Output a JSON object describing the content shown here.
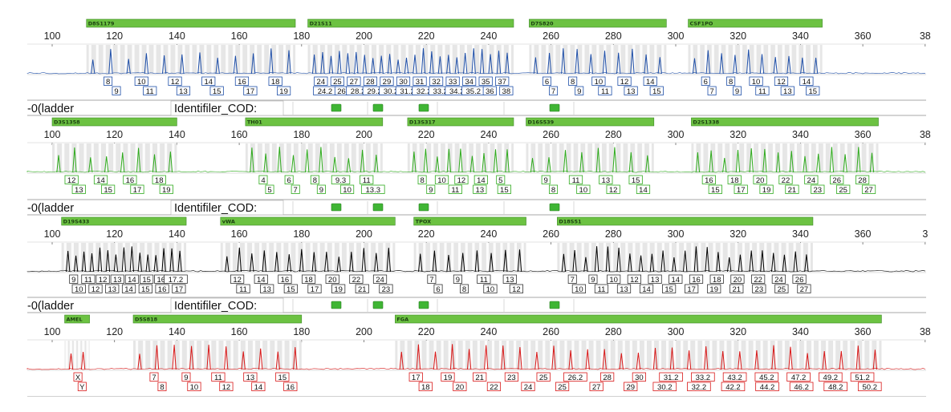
{
  "scale_labels": [
    "100",
    "120",
    "140",
    "160",
    "180",
    "200",
    "220",
    "240",
    "260",
    "280",
    "300",
    "320",
    "340",
    "360",
    "38"
  ],
  "panel_scale_labels": [
    [
      "100",
      "120",
      "140",
      "160",
      "180",
      "200",
      "220",
      "240",
      "260",
      "280",
      "300",
      "320",
      "340",
      "360",
      "38"
    ],
    [
      "100",
      "120",
      "140",
      "160",
      "180",
      "200",
      "220",
      "240",
      "260",
      "280",
      "300",
      "320",
      "340",
      "360",
      "38"
    ],
    [
      "100",
      "120",
      "140",
      "160",
      "180",
      "200",
      "220",
      "240",
      "260",
      "280",
      "300",
      "320",
      "340",
      "360",
      "3"
    ],
    [
      "100",
      "120",
      "140",
      "160",
      "180",
      "200",
      "220",
      "240",
      "260",
      "280",
      "300",
      "320",
      "340",
      "360",
      "38"
    ]
  ],
  "info_rows": [
    {
      "sample": "-0(ladder",
      "panel": "Identifiler_COD:"
    },
    {
      "sample": "-0(ladder",
      "panel": "Identifiler_COD:"
    },
    {
      "sample": "-0(ladder",
      "panel": "Identifiler_COD:"
    }
  ],
  "colors": {
    "blue": "#1f4fa8",
    "green": "#2eaa1c",
    "black": "#000000",
    "red": "#d81818",
    "marker": "#6cc242",
    "bin": "#e6e6e6"
  },
  "panels": [
    {
      "dye": "blue",
      "loci": [
        {
          "name": "D8S1179",
          "start": 111,
          "end": 178,
          "labels_top": [
            "8",
            "10",
            "12",
            "14",
            "16",
            "18"
          ],
          "labels_bottom": [
            "9",
            "11",
            "13",
            "15",
            "17",
            "19"
          ]
        },
        {
          "name": "D21S11",
          "start": 182,
          "end": 248,
          "labels_top": [
            "24",
            "25",
            "27",
            "28",
            "29",
            "30",
            "31",
            "32",
            "33",
            "34",
            "35",
            "37"
          ],
          "labels_bottom": [
            "24.2",
            "26",
            "28.2",
            "29.2",
            "30.2",
            "31.2",
            "32.2",
            "33.2",
            "34.2",
            "35.2",
            "36",
            "38"
          ]
        },
        {
          "name": "D7S820",
          "start": 253,
          "end": 297,
          "labels_top": [
            "6",
            "8",
            "10",
            "12",
            "14"
          ],
          "labels_bottom": [
            "7",
            "9",
            "11",
            "13",
            "15"
          ]
        },
        {
          "name": "CSF1PO",
          "start": 304,
          "end": 347,
          "labels_top": [
            "6",
            "8",
            "10",
            "12",
            "14"
          ],
          "labels_bottom": [
            "7",
            "9",
            "11",
            "13",
            "15"
          ]
        }
      ]
    },
    {
      "dye": "green",
      "loci": [
        {
          "name": "D3S1358",
          "start": 100,
          "end": 140,
          "labels_top": [
            "12",
            "14",
            "16",
            "18"
          ],
          "labels_bottom": [
            "13",
            "15",
            "17",
            "19"
          ]
        },
        {
          "name": "TH01",
          "start": 162,
          "end": 206,
          "labels_top": [
            "4",
            "6",
            "8",
            "9.3",
            "11"
          ],
          "labels_bottom": [
            "5",
            "7",
            "9",
            "10",
            "13.3"
          ]
        },
        {
          "name": "D13S317",
          "start": 214,
          "end": 248,
          "labels_top": [
            "8",
            "10",
            "12",
            "14",
            "5"
          ],
          "labels_bottom": [
            "9",
            "11",
            "13",
            "15"
          ]
        },
        {
          "name": "D16S539",
          "start": 252,
          "end": 293,
          "labels_top": [
            "9",
            "11",
            "13",
            "15"
          ],
          "labels_bottom": [
            "8",
            "10",
            "12",
            "14"
          ]
        },
        {
          "name": "D2S1338",
          "start": 305,
          "end": 365,
          "labels_top": [
            "16",
            "18",
            "20",
            "22",
            "24",
            "26",
            "28"
          ],
          "labels_bottom": [
            "15",
            "17",
            "19",
            "21",
            "23",
            "25",
            "27"
          ]
        }
      ]
    },
    {
      "dye": "black",
      "loci": [
        {
          "name": "D19S433",
          "start": 103,
          "end": 143,
          "labels_top": [
            "9",
            "11",
            "12",
            "13",
            "14",
            "15",
            "16",
            "17.2"
          ],
          "labels_bottom": [
            "10",
            "12",
            "13",
            "14",
            "15",
            "16",
            "17"
          ]
        },
        {
          "name": "vWA",
          "start": 154,
          "end": 210,
          "labels_top": [
            "12",
            "14",
            "16",
            "18",
            "20",
            "22",
            "24"
          ],
          "labels_bottom": [
            "11",
            "13",
            "15",
            "17",
            "19",
            "21",
            "23"
          ]
        },
        {
          "name": "TPOX",
          "start": 216,
          "end": 252,
          "labels_top": [
            "7",
            "9",
            "11",
            "13"
          ],
          "labels_bottom": [
            "6",
            "8",
            "10",
            "12"
          ]
        },
        {
          "name": "D18S51",
          "start": 262,
          "end": 344,
          "labels_top": [
            "7",
            "9",
            "10",
            "12",
            "13",
            "14",
            "16",
            "18",
            "20",
            "22",
            "24",
            "26"
          ],
          "labels_bottom": [
            "10",
            "11",
            "13",
            "14",
            "15",
            "17",
            "19",
            "21",
            "23",
            "25",
            "27"
          ]
        }
      ]
    },
    {
      "dye": "red",
      "loci": [
        {
          "name": "AMEL",
          "start": 104,
          "end": 112,
          "labels_top": [
            "X"
          ],
          "labels_bottom": [
            "Y"
          ]
        },
        {
          "name": "D5S818",
          "start": 126,
          "end": 180,
          "labels_top": [
            "7",
            "9",
            "11",
            "13",
            "15"
          ],
          "labels_bottom": [
            "8",
            "10",
            "12",
            "14",
            "16"
          ]
        },
        {
          "name": "FGA",
          "start": 210,
          "end": 366,
          "labels_top": [
            "17",
            "19",
            "21",
            "23",
            "25",
            "26.2",
            "28",
            "30",
            "31.2",
            "33.2",
            "43.2",
            "45.2",
            "47.2",
            "49.2",
            "51.2"
          ],
          "labels_bottom": [
            "18",
            "20",
            "22",
            "24",
            "25",
            "27",
            "29",
            "30.2",
            "32.2",
            "42.2",
            "44.2",
            "46.2",
            "48.2",
            "50.2"
          ]
        }
      ]
    }
  ]
}
